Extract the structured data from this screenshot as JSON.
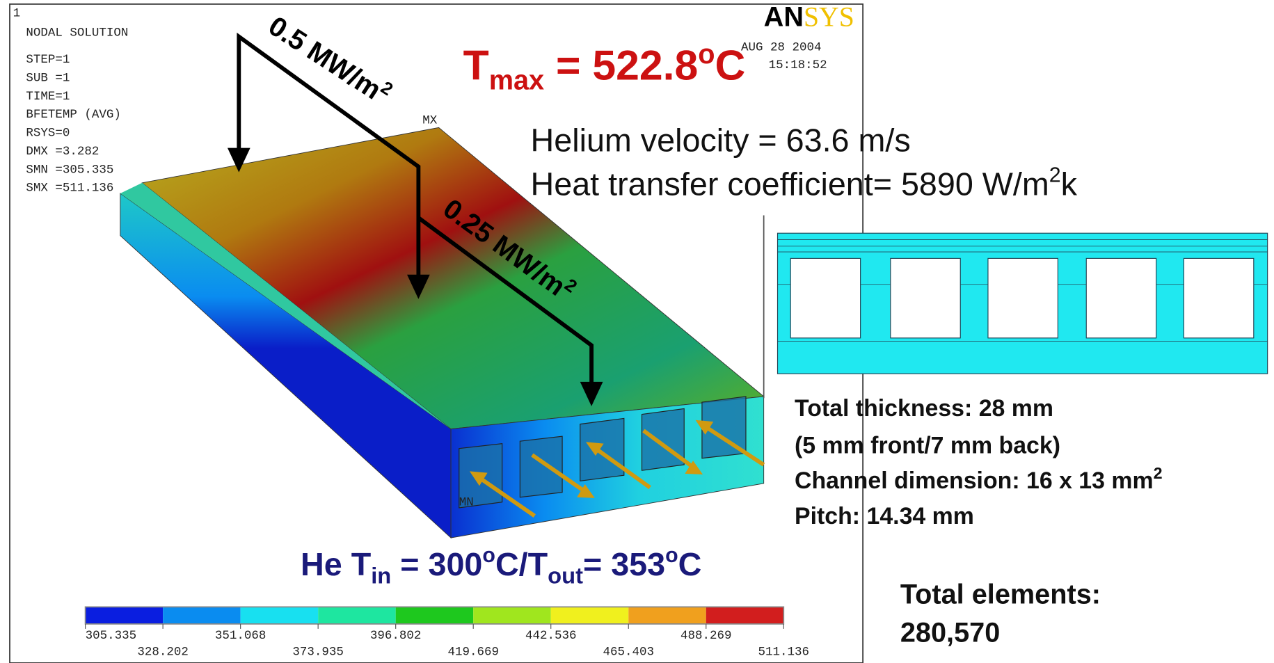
{
  "ansys_panel": {
    "frame_number": "1",
    "logo_a": "AN",
    "logo_b": "SYS",
    "date": "AUG 28 2004",
    "time": "15:18:52",
    "info": [
      "NODAL SOLUTION",
      "STEP=1",
      "SUB =1",
      "TIME=1",
      "BFETEMP   (AVG)",
      "RSYS=0",
      "DMX =3.282",
      "SMN =305.335",
      "SMX =511.136"
    ],
    "mx_label": "MX",
    "mn_label": "MN",
    "legend_labels": [
      "305.335",
      "328.202",
      "351.068",
      "373.935",
      "396.802",
      "419.669",
      "442.536",
      "465.403",
      "488.269",
      "511.136"
    ]
  },
  "tmax": {
    "symbol": "T",
    "subscript": "max",
    "value": " = 522.8",
    "degree": "o",
    "unit": "C"
  },
  "heat_flux": {
    "front": {
      "text": "0.5 MW/m",
      "superscript": "2"
    },
    "back": {
      "text": "0.25 MW/m",
      "superscript": "2"
    }
  },
  "helium": {
    "velocity": "Helium velocity = 63.6 m/s",
    "htc": "Heat transfer coefficient= 5890 W/m",
    "htc_sup": "2",
    "htc_end": "k"
  },
  "he_temps": {
    "a": "He T",
    "in": "in",
    "b": " = 300",
    "deg1": "o",
    "c": "C/T",
    "out": "out",
    "d": "= 353",
    "deg2": "o",
    "e": "C"
  },
  "specs": {
    "thickness": "Total thickness: 28 mm",
    "front_back": "(5 mm front/7 mm back)",
    "channel": "Channel dimension: 16 x 13 mm",
    "channel_sup": "2",
    "pitch": "Pitch: 14.34 mm"
  },
  "elements": {
    "label": "Total elements:",
    "count": "280,570"
  }
}
